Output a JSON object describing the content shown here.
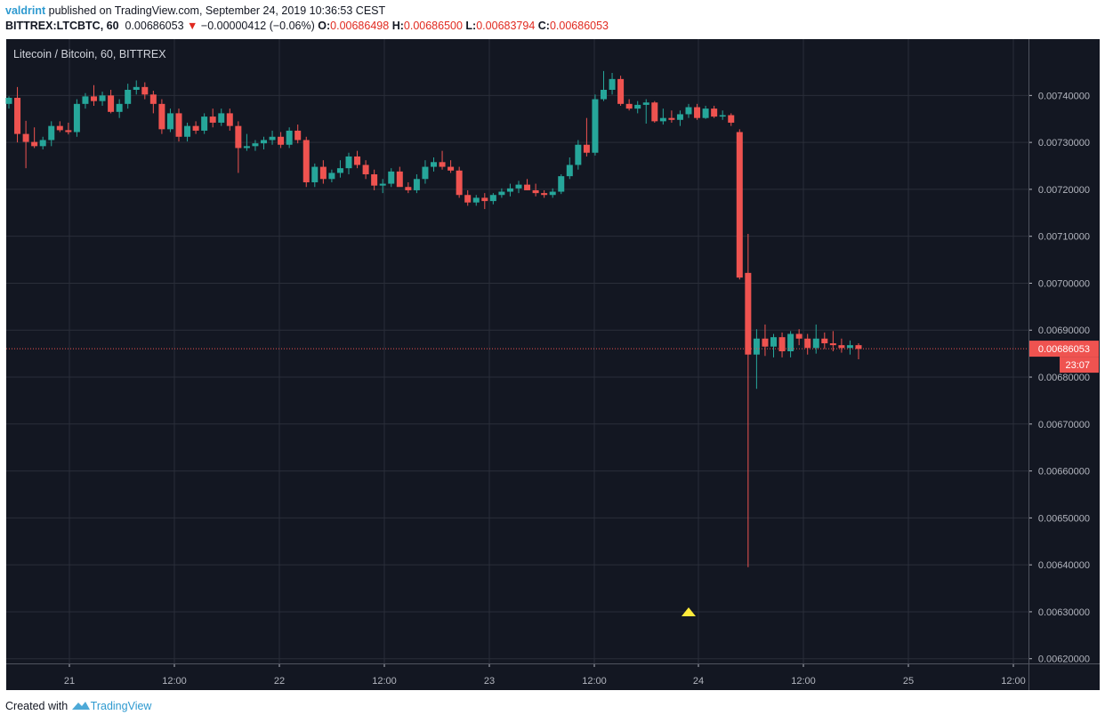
{
  "header": {
    "author": "valdrint",
    "published_text": "published on TradingView.com, September 24, 2019 10:36:53 CEST",
    "symbol": "BITTREX:LTCBTC, 60",
    "last": "0.00686053",
    "change": "−0.00000412 (−0.06%)",
    "open_label": "O:",
    "open": "0.00686498",
    "high_label": "H:",
    "high": "0.00686500",
    "low_label": "L:",
    "low": "0.00683794",
    "close_label": "C:",
    "close": "0.00686053"
  },
  "footer": {
    "created_with": "Created with",
    "brand": "TradingView"
  },
  "colors": {
    "background": "#131722",
    "grid": "#2a2e39",
    "up": "#26a69a",
    "down": "#ef5350",
    "axis_text": "#b2b5be",
    "price_line": "#ef5350",
    "marker": "#ffeb3b"
  },
  "chart_data": {
    "type": "candlestick",
    "title": "Litecoin / Bitcoin, 60, BITTREX",
    "x_ticks": [
      "21",
      "12:00",
      "22",
      "12:00",
      "23",
      "12:00",
      "24",
      "12:00",
      "25",
      "12:00"
    ],
    "y_ticks": [
      "0.00740000",
      "0.00730000",
      "0.00720000",
      "0.00710000",
      "0.00700000",
      "0.00690000",
      "0.00680000",
      "0.00670000",
      "0.00660000",
      "0.00650000",
      "0.00640000",
      "0.00630000",
      "0.00620000"
    ],
    "ylim": [
      0.00619,
      0.00752
    ],
    "last_price_label": "0.00686053",
    "countdown_label": "23:07",
    "last_price": 0.00686053,
    "marker": {
      "type": "triangle-up",
      "price": 0.0063
    },
    "candles": [
      [
        0.007382,
        0.007398,
        0.007372,
        0.007395
      ],
      [
        0.007395,
        0.007418,
        0.0073,
        0.007318
      ],
      [
        0.007318,
        0.007346,
        0.007245,
        0.007301
      ],
      [
        0.007301,
        0.007332,
        0.007288,
        0.007292
      ],
      [
        0.007292,
        0.007312,
        0.007285,
        0.007305
      ],
      [
        0.007305,
        0.007345,
        0.007292,
        0.007335
      ],
      [
        0.007335,
        0.007345,
        0.007322,
        0.007326
      ],
      [
        0.007326,
        0.007342,
        0.007317,
        0.007322
      ],
      [
        0.007322,
        0.007392,
        0.007312,
        0.007382
      ],
      [
        0.007382,
        0.007405,
        0.007372,
        0.007398
      ],
      [
        0.007398,
        0.007422,
        0.007378,
        0.007388
      ],
      [
        0.007388,
        0.007408,
        0.007378,
        0.0074
      ],
      [
        0.0074,
        0.007412,
        0.007362,
        0.007365
      ],
      [
        0.007365,
        0.007392,
        0.007352,
        0.007382
      ],
      [
        0.007382,
        0.007425,
        0.007372,
        0.007412
      ],
      [
        0.007412,
        0.007432,
        0.007402,
        0.007418
      ],
      [
        0.007418,
        0.007428,
        0.007392,
        0.007402
      ],
      [
        0.007402,
        0.00741,
        0.007362,
        0.007382
      ],
      [
        0.007382,
        0.007392,
        0.007318,
        0.007328
      ],
      [
        0.007328,
        0.007372,
        0.007322,
        0.007362
      ],
      [
        0.007362,
        0.007372,
        0.007302,
        0.007312
      ],
      [
        0.007312,
        0.007342,
        0.007302,
        0.007335
      ],
      [
        0.007335,
        0.007345,
        0.007318,
        0.007325
      ],
      [
        0.007325,
        0.007362,
        0.007318,
        0.007355
      ],
      [
        0.007355,
        0.007372,
        0.007332,
        0.007342
      ],
      [
        0.007342,
        0.007372,
        0.007335,
        0.007362
      ],
      [
        0.007362,
        0.007372,
        0.007325,
        0.007335
      ],
      [
        0.007335,
        0.007345,
        0.007235,
        0.007288
      ],
      [
        0.007288,
        0.007318,
        0.007282,
        0.007292
      ],
      [
        0.007292,
        0.007305,
        0.007282,
        0.007298
      ],
      [
        0.007298,
        0.007312,
        0.007285,
        0.007305
      ],
      [
        0.007305,
        0.007325,
        0.007295,
        0.007312
      ],
      [
        0.007312,
        0.007322,
        0.007288,
        0.007295
      ],
      [
        0.007295,
        0.007332,
        0.007288,
        0.007325
      ],
      [
        0.007325,
        0.007338,
        0.007298,
        0.007305
      ],
      [
        0.007305,
        0.007312,
        0.007205,
        0.007215
      ],
      [
        0.007215,
        0.007255,
        0.007205,
        0.007248
      ],
      [
        0.007248,
        0.007262,
        0.007212,
        0.007222
      ],
      [
        0.007222,
        0.007242,
        0.007215,
        0.007235
      ],
      [
        0.007235,
        0.007262,
        0.007225,
        0.007245
      ],
      [
        0.007245,
        0.007278,
        0.007232,
        0.00727
      ],
      [
        0.00727,
        0.007282,
        0.007245,
        0.007252
      ],
      [
        0.007252,
        0.007262,
        0.007222,
        0.007232
      ],
      [
        0.007232,
        0.007242,
        0.007198,
        0.007208
      ],
      [
        0.007208,
        0.007222,
        0.007192,
        0.007212
      ],
      [
        0.007212,
        0.007245,
        0.007205,
        0.007238
      ],
      [
        0.007238,
        0.007248,
        0.007208,
        0.007205
      ],
      [
        0.007205,
        0.007215,
        0.007192,
        0.007198
      ],
      [
        0.007198,
        0.007232,
        0.007192,
        0.007222
      ],
      [
        0.007222,
        0.007262,
        0.007212,
        0.007248
      ],
      [
        0.007248,
        0.007268,
        0.007238,
        0.007258
      ],
      [
        0.007258,
        0.007282,
        0.007242,
        0.007248
      ],
      [
        0.007248,
        0.007262,
        0.007235,
        0.00724
      ],
      [
        0.00724,
        0.007248,
        0.007182,
        0.007188
      ],
      [
        0.007188,
        0.007198,
        0.007165,
        0.007172
      ],
      [
        0.007172,
        0.007188,
        0.007165,
        0.007182
      ],
      [
        0.007182,
        0.007192,
        0.007158,
        0.007175
      ],
      [
        0.007175,
        0.007192,
        0.007168,
        0.007188
      ],
      [
        0.007188,
        0.007202,
        0.007182,
        0.007195
      ],
      [
        0.007195,
        0.007212,
        0.007185,
        0.007202
      ],
      [
        0.007202,
        0.007218,
        0.007192,
        0.00721
      ],
      [
        0.00721,
        0.007222,
        0.007198,
        0.007198
      ],
      [
        0.007198,
        0.007212,
        0.007185,
        0.007192
      ],
      [
        0.007192,
        0.007198,
        0.007182,
        0.007188
      ],
      [
        0.007188,
        0.007202,
        0.007182,
        0.007195
      ],
      [
        0.007195,
        0.007232,
        0.00719,
        0.007228
      ],
      [
        0.007228,
        0.007268,
        0.007222,
        0.007252
      ],
      [
        0.007252,
        0.007305,
        0.007242,
        0.007295
      ],
      [
        0.007295,
        0.007352,
        0.00727,
        0.007278
      ],
      [
        0.007278,
        0.007402,
        0.007272,
        0.007392
      ],
      [
        0.007392,
        0.007452,
        0.007388,
        0.007412
      ],
      [
        0.007412,
        0.007448,
        0.007402,
        0.007435
      ],
      [
        0.007435,
        0.007442,
        0.007378,
        0.007382
      ],
      [
        0.007382,
        0.007392,
        0.007368,
        0.007372
      ],
      [
        0.007372,
        0.007388,
        0.007362,
        0.00738
      ],
      [
        0.00738,
        0.007392,
        0.00734,
        0.007385
      ],
      [
        0.007385,
        0.007388,
        0.007342,
        0.007345
      ],
      [
        0.007345,
        0.007372,
        0.007338,
        0.007352
      ],
      [
        0.007352,
        0.007368,
        0.007342,
        0.007348
      ],
      [
        0.007348,
        0.007368,
        0.007335,
        0.00736
      ],
      [
        0.00736,
        0.007382,
        0.007352,
        0.007375
      ],
      [
        0.007375,
        0.007382,
        0.007348,
        0.007352
      ],
      [
        0.007352,
        0.007378,
        0.00735,
        0.007372
      ],
      [
        0.007372,
        0.007378,
        0.007352,
        0.007355
      ],
      [
        0.007355,
        0.007368,
        0.007348,
        0.007358
      ],
      [
        0.007358,
        0.007362,
        0.007335,
        0.007342
      ],
      [
        0.007322,
        0.007328,
        0.007008,
        0.007012
      ],
      [
        0.007022,
        0.007105,
        0.006395,
        0.006848
      ],
      [
        0.006848,
        0.006902,
        0.006775,
        0.006882
      ],
      [
        0.006882,
        0.006912,
        0.006845,
        0.006865
      ],
      [
        0.006865,
        0.006892,
        0.006842,
        0.006885
      ],
      [
        0.006885,
        0.006895,
        0.006842,
        0.006855
      ],
      [
        0.006855,
        0.006898,
        0.006842,
        0.006892
      ],
      [
        0.006892,
        0.006902,
        0.006868,
        0.006882
      ],
      [
        0.006882,
        0.006892,
        0.006848,
        0.006862
      ],
      [
        0.006862,
        0.006912,
        0.00685,
        0.006882
      ],
      [
        0.006882,
        0.006895,
        0.00686,
        0.006872
      ],
      [
        0.006872,
        0.006898,
        0.006855,
        0.006868
      ],
      [
        0.006868,
        0.006882,
        0.006852,
        0.006862
      ],
      [
        0.006862,
        0.006878,
        0.006848,
        0.006868
      ],
      [
        0.006868,
        0.006872,
        0.006838,
        0.00686
      ]
    ]
  }
}
